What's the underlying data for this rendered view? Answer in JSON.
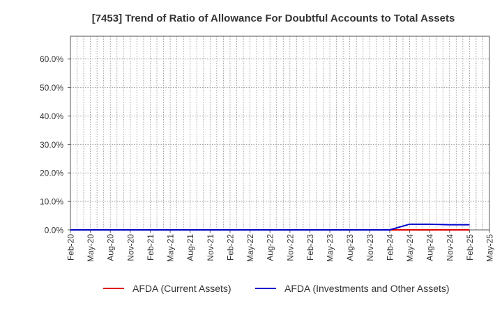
{
  "chart_data": {
    "type": "line",
    "title": "[7453]  Trend of Ratio of Allowance For Doubtful Accounts to Total Assets",
    "xlabel": "",
    "ylabel": "",
    "ylim": [
      0,
      0.68
    ],
    "yticks": [
      0,
      0.1,
      0.2,
      0.3,
      0.4,
      0.5,
      0.6
    ],
    "ytick_labels": [
      "0.0%",
      "10.0%",
      "20.0%",
      "30.0%",
      "40.0%",
      "50.0%",
      "60.0%"
    ],
    "x_labels": [
      "Feb-20",
      "May-20",
      "Aug-20",
      "Nov-20",
      "Feb-21",
      "May-21",
      "Aug-21",
      "Nov-21",
      "Feb-22",
      "May-22",
      "Aug-22",
      "Nov-22",
      "Feb-23",
      "May-23",
      "Aug-23",
      "Nov-23",
      "Feb-24",
      "May-24",
      "Aug-24",
      "Nov-24",
      "Feb-25",
      "May-25"
    ],
    "grid": true,
    "legend_position": "bottom",
    "series": [
      {
        "name": "AFDA (Current Assets)",
        "color": "#e00000",
        "values": [
          0,
          0,
          0,
          0,
          0,
          0,
          0,
          0,
          0,
          0,
          0,
          0,
          0,
          0,
          0,
          0,
          0,
          0,
          0,
          0,
          0,
          null
        ]
      },
      {
        "name": "AFDA (Investments and Other Assets)",
        "color": "#0000cc",
        "values": [
          0,
          0,
          0,
          0,
          0,
          0,
          0,
          0,
          0,
          0,
          0,
          0,
          0,
          0,
          0,
          0,
          0,
          0.02,
          0.02,
          0.018,
          0.018,
          null
        ]
      }
    ]
  }
}
